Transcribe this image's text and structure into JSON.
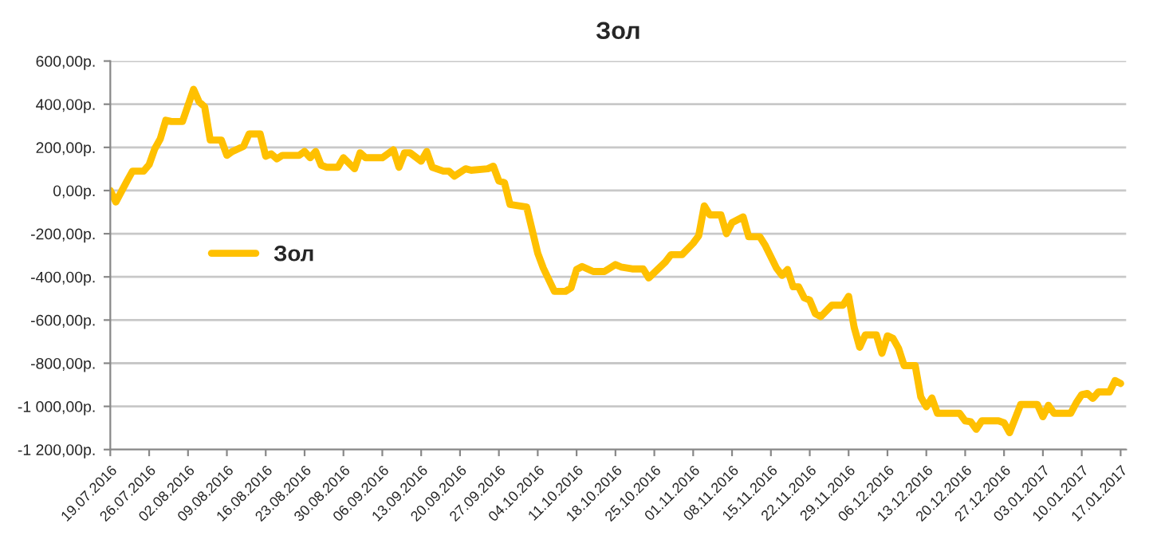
{
  "chart_data": {
    "type": "line",
    "title": "Зол",
    "ylim": [
      -1200,
      600
    ],
    "yticks": [
      {
        "value": -1200,
        "label": "-1 200,00р."
      },
      {
        "value": -1000,
        "label": "-1 000,00р."
      },
      {
        "value": -800,
        "label": "-800,00р."
      },
      {
        "value": -600,
        "label": "-600,00р."
      },
      {
        "value": -400,
        "label": "-400,00р."
      },
      {
        "value": -200,
        "label": "-200,00р."
      },
      {
        "value": 0,
        "label": "0,00р."
      },
      {
        "value": 200,
        "label": "200,00р."
      },
      {
        "value": 400,
        "label": "400,00р."
      },
      {
        "value": 600,
        "label": "600,00р."
      }
    ],
    "xlim": [
      "2016-07-19",
      "2017-01-18"
    ],
    "xticks": [
      {
        "value": "2016-07-19",
        "label": "19.07.2016"
      },
      {
        "value": "2016-07-26",
        "label": "26.07.2016"
      },
      {
        "value": "2016-08-02",
        "label": "02.08.2016"
      },
      {
        "value": "2016-08-09",
        "label": "09.08.2016"
      },
      {
        "value": "2016-08-16",
        "label": "16.08.2016"
      },
      {
        "value": "2016-08-23",
        "label": "23.08.2016"
      },
      {
        "value": "2016-08-30",
        "label": "30.08.2016"
      },
      {
        "value": "2016-09-06",
        "label": "06.09.2016"
      },
      {
        "value": "2016-09-13",
        "label": "13.09.2016"
      },
      {
        "value": "2016-09-20",
        "label": "20.09.2016"
      },
      {
        "value": "2016-09-27",
        "label": "27.09.2016"
      },
      {
        "value": "2016-10-04",
        "label": "04.10.2016"
      },
      {
        "value": "2016-10-11",
        "label": "11.10.2016"
      },
      {
        "value": "2016-10-18",
        "label": "18.10.2016"
      },
      {
        "value": "2016-10-25",
        "label": "25.10.2016"
      },
      {
        "value": "2016-11-01",
        "label": "01.11.2016"
      },
      {
        "value": "2016-11-08",
        "label": "08.11.2016"
      },
      {
        "value": "2016-11-15",
        "label": "15.11.2016"
      },
      {
        "value": "2016-11-22",
        "label": "22.11.2016"
      },
      {
        "value": "2016-11-29",
        "label": "29.11.2016"
      },
      {
        "value": "2016-12-06",
        "label": "06.12.2016"
      },
      {
        "value": "2016-12-13",
        "label": "13.12.2016"
      },
      {
        "value": "2016-12-20",
        "label": "20.12.2016"
      },
      {
        "value": "2016-12-27",
        "label": "27.12.2016"
      },
      {
        "value": "2017-01-03",
        "label": "03.01.2017"
      },
      {
        "value": "2017-01-10",
        "label": "10.01.2017"
      },
      {
        "value": "2017-01-17",
        "label": "17.01.2017"
      }
    ],
    "grid": "y",
    "legend": "center left",
    "marker": "none",
    "line_style": "solid",
    "x": [
      "2016-07-19",
      "2016-07-20",
      "2016-07-22",
      "2016-07-23",
      "2016-07-25",
      "2016-07-26",
      "2016-07-27",
      "2016-07-28",
      "2016-07-29",
      "2016-07-30",
      "2016-08-01",
      "2016-08-03",
      "2016-08-04",
      "2016-08-05",
      "2016-08-06",
      "2016-08-08",
      "2016-08-09",
      "2016-08-10",
      "2016-08-12",
      "2016-08-13",
      "2016-08-15",
      "2016-08-16",
      "2016-08-17",
      "2016-08-18",
      "2016-08-19",
      "2016-08-22",
      "2016-08-23",
      "2016-08-24",
      "2016-08-25",
      "2016-08-26",
      "2016-08-27",
      "2016-08-29",
      "2016-08-30",
      "2016-09-01",
      "2016-09-02",
      "2016-09-03",
      "2016-09-06",
      "2016-09-08",
      "2016-09-09",
      "2016-09-10",
      "2016-09-11",
      "2016-09-13",
      "2016-09-14",
      "2016-09-15",
      "2016-09-17",
      "2016-09-18",
      "2016-09-19",
      "2016-09-21",
      "2016-09-22",
      "2016-09-25",
      "2016-09-26",
      "2016-09-27",
      "2016-09-28",
      "2016-09-29",
      "2016-10-02",
      "2016-10-04",
      "2016-10-05",
      "2016-10-07",
      "2016-10-09",
      "2016-10-10",
      "2016-10-11",
      "2016-10-12",
      "2016-10-14",
      "2016-10-16",
      "2016-10-18",
      "2016-10-19",
      "2016-10-21",
      "2016-10-23",
      "2016-10-24",
      "2016-10-27",
      "2016-10-28",
      "2016-10-30",
      "2016-11-01",
      "2016-11-02",
      "2016-11-03",
      "2016-11-04",
      "2016-11-06",
      "2016-11-07",
      "2016-11-08",
      "2016-11-10",
      "2016-11-11",
      "2016-11-13",
      "2016-11-14",
      "2016-11-16",
      "2016-11-17",
      "2016-11-18",
      "2016-11-19",
      "2016-11-20",
      "2016-11-21",
      "2016-11-22",
      "2016-11-23",
      "2016-11-24",
      "2016-11-26",
      "2016-11-28",
      "2016-11-29",
      "2016-11-30",
      "2016-12-01",
      "2016-12-02",
      "2016-12-04",
      "2016-12-05",
      "2016-12-06",
      "2016-12-07",
      "2016-12-08",
      "2016-12-09",
      "2016-12-11",
      "2016-12-12",
      "2016-12-13",
      "2016-12-14",
      "2016-12-15",
      "2016-12-19",
      "2016-12-20",
      "2016-12-21",
      "2016-12-22",
      "2016-12-23",
      "2016-12-26",
      "2016-12-27",
      "2016-12-28",
      "2016-12-30",
      "2017-01-02",
      "2017-01-03",
      "2017-01-04",
      "2017-01-05",
      "2017-01-08",
      "2017-01-09",
      "2017-01-10",
      "2017-01-11",
      "2017-01-12",
      "2017-01-13",
      "2017-01-15",
      "2017-01-16",
      "2017-01-17"
    ],
    "series": [
      {
        "name": "Зол",
        "color": "#ffc000",
        "values": [
          0,
          -53,
          44,
          90,
          90,
          120,
          193,
          239,
          326,
          320,
          320,
          469,
          411,
          388,
          234,
          234,
          163,
          181,
          205,
          262,
          262,
          159,
          170,
          147,
          163,
          163,
          181,
          152,
          181,
          117,
          108,
          108,
          152,
          101,
          175,
          152,
          152,
          189,
          108,
          175,
          175,
          136,
          181,
          108,
          90,
          90,
          67,
          101,
          94,
          101,
          113,
          44,
          37,
          -64,
          -76,
          -290,
          -359,
          -467,
          -467,
          -451,
          -366,
          -352,
          -375,
          -375,
          -343,
          -354,
          -363,
          -363,
          -405,
          -331,
          -297,
          -297,
          -244,
          -209,
          -71,
          -113,
          -113,
          -200,
          -149,
          -122,
          -214,
          -214,
          -255,
          -359,
          -393,
          -366,
          -446,
          -446,
          -497,
          -508,
          -570,
          -584,
          -531,
          -531,
          -490,
          -634,
          -726,
          -669,
          -669,
          -754,
          -673,
          -685,
          -731,
          -811,
          -811,
          -956,
          -1002,
          -961,
          -1032,
          -1032,
          -1067,
          -1071,
          -1106,
          -1067,
          -1067,
          -1076,
          -1122,
          -991,
          -991,
          -1048,
          -995,
          -1032,
          -1032,
          -984,
          -945,
          -940,
          -963,
          -933,
          -933,
          -880,
          -894
        ]
      }
    ]
  }
}
